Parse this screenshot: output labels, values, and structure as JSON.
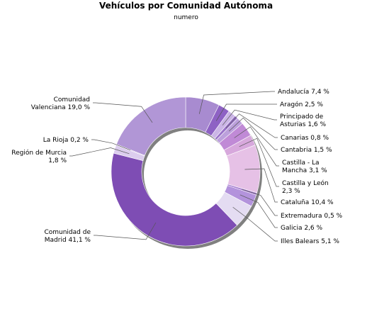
{
  "chart_data": {
    "type": "pie",
    "title": "Vehículos por Comunidad Autónoma",
    "subtitle": "numero",
    "slices": [
      {
        "label": "Andalucía 7,4 %",
        "value": 7.4,
        "color": "#a88bd0"
      },
      {
        "label": "Aragón 2,5 %",
        "value": 2.5,
        "color": "#8e62c4"
      },
      {
        "label": "Principado de Asturias 1,6 %",
        "value": 1.6,
        "color": "#cbb5e6"
      },
      {
        "label": "Canarias 0,8 %",
        "value": 0.8,
        "color": "#9a73c9"
      },
      {
        "label": "Cantabria 1,5 %",
        "value": 1.5,
        "color": "#bca0dc"
      },
      {
        "label": "Castilla - La Mancha 3,1 %",
        "value": 3.1,
        "color": "#c08ad6"
      },
      {
        "label": "Castilla y León 2,3 %",
        "value": 2.3,
        "color": "#d7a8dc"
      },
      {
        "label": "Cataluña 10,4 %",
        "value": 10.4,
        "color": "#e6c1e6"
      },
      {
        "label": "Extremadura 0,5 %",
        "value": 0.5,
        "color": "#a57dd0"
      },
      {
        "label": "Galicia 2,6 %",
        "value": 2.6,
        "color": "#b393dc"
      },
      {
        "label": "Illes Balears 5,1 %",
        "value": 5.1,
        "color": "#e4dcf2"
      },
      {
        "label": "Comunidad de Madrid 41,1 %",
        "value": 41.1,
        "color": "#7e4db4"
      },
      {
        "label": "Región de Murcia 1,8 %",
        "value": 1.8,
        "color": "#dccdee"
      },
      {
        "label": "La Rioja 0,2 %",
        "value": 0.2,
        "color": "#c4acdf"
      },
      {
        "label": "Comunidad Valenciana 19,0 %",
        "value": 19.0,
        "color": "#b196d6"
      }
    ]
  }
}
